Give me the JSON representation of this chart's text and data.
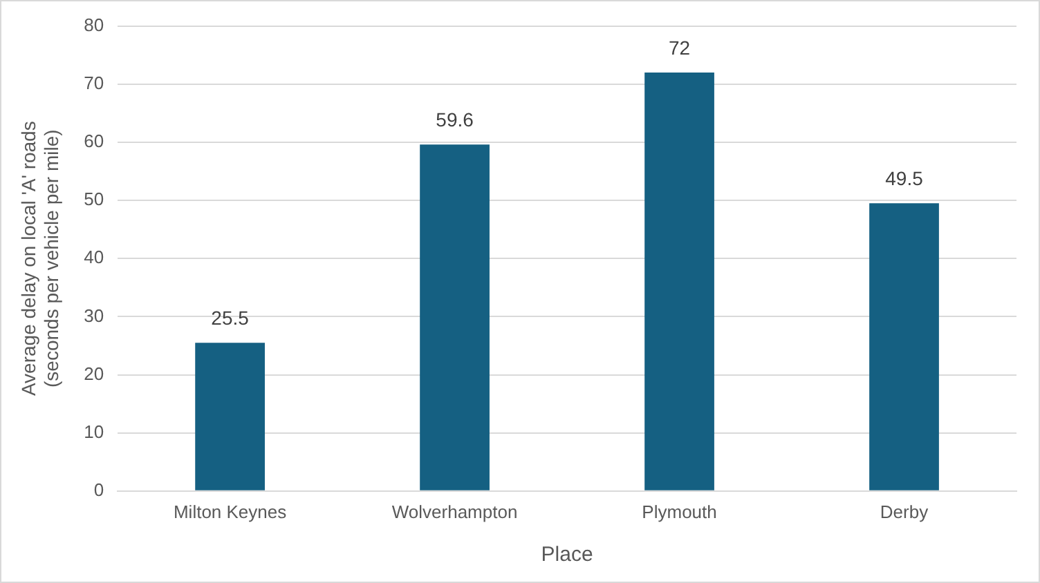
{
  "chart_data": {
    "type": "bar",
    "xlabel": "Place",
    "ylabel": "Average delay on local 'A' roads (seconds per vehicle per mile)",
    "categories": [
      "Milton Keynes",
      "Wolverhampton",
      "Plymouth",
      "Derby"
    ],
    "values": [
      25.5,
      59.6,
      72,
      49.5
    ],
    "color": "#156082",
    "ylim": [
      0,
      80
    ],
    "yticks": [
      0,
      10,
      20,
      30,
      40,
      50,
      60,
      70,
      80
    ],
    "grid": "y",
    "data_labels": true
  }
}
